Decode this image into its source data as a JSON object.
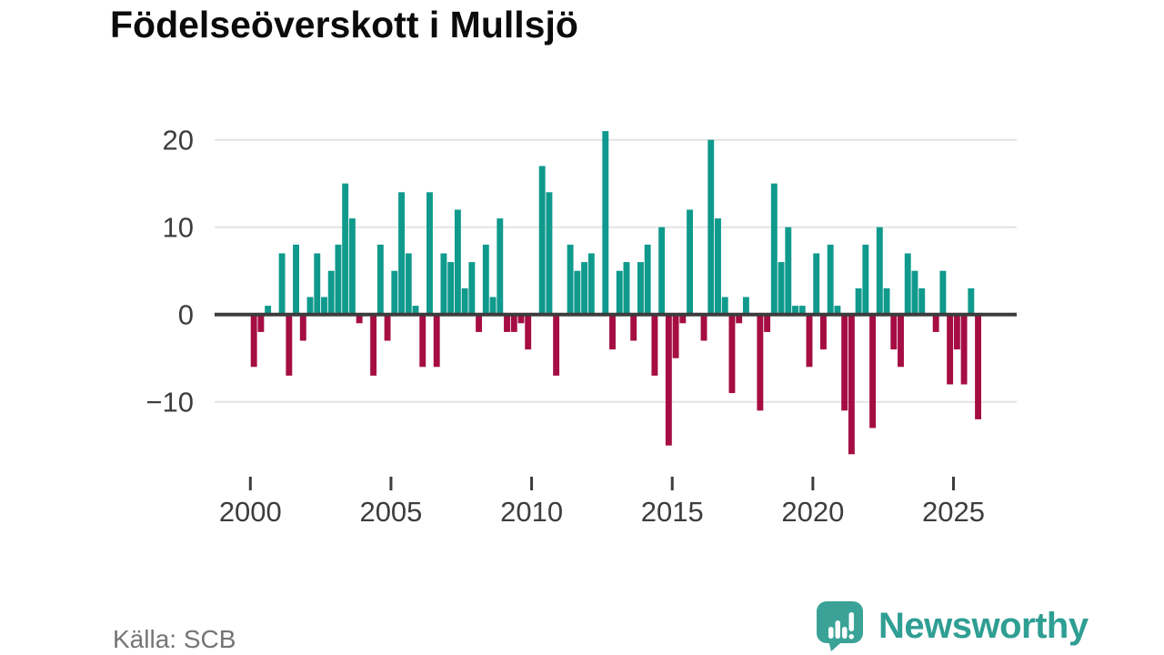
{
  "title": "Födelseöverskott i Mullsjö",
  "source": "Källa: SCB",
  "logo": {
    "brand": "Newsworthy"
  },
  "colors": {
    "positive_bar": "#0f9a8d",
    "negative_bar": "#a50d43",
    "zero_line": "#3c3c3c",
    "gridline": "#e4e4e4",
    "axis_text": "#3d3d3d",
    "title_text": "#0b0b0b",
    "source_text": "#757575",
    "logo_teal": "#2f9e93",
    "logo_bubble": "#3ba297"
  },
  "chart_data": {
    "type": "bar",
    "title": "Födelseöverskott i Mullsjö",
    "unit": "persons per quarter",
    "frequency": "quarterly",
    "x_start": "2000 Q1",
    "x_end": "2025 Q4",
    "grid": "horizontal",
    "legend": "none",
    "ylim": [
      -17,
      21.5
    ],
    "y_ticks": [
      {
        "value": -10,
        "label": "−10"
      },
      {
        "value": 0,
        "label": "0"
      },
      {
        "value": 10,
        "label": "10"
      },
      {
        "value": 20,
        "label": "20"
      }
    ],
    "x_ticks": [
      {
        "year": 2000,
        "label": "2000"
      },
      {
        "year": 2005,
        "label": "2005"
      },
      {
        "year": 2010,
        "label": "2010"
      },
      {
        "year": 2015,
        "label": "2015"
      },
      {
        "year": 2020,
        "label": "2020"
      },
      {
        "year": 2025,
        "label": "2025"
      }
    ],
    "values": [
      -6,
      -2,
      1,
      0,
      7,
      -7,
      8,
      -3,
      2,
      7,
      2,
      5,
      8,
      15,
      11,
      -1,
      0,
      -7,
      8,
      -3,
      5,
      14,
      7,
      1,
      -6,
      14,
      -6,
      7,
      6,
      12,
      3,
      6,
      -2,
      8,
      2,
      11,
      -2,
      -2,
      -1,
      -4,
      0,
      17,
      14,
      -7,
      0,
      8,
      5,
      6,
      7,
      0,
      21,
      -4,
      5,
      6,
      -3,
      6,
      8,
      -7,
      10,
      -15,
      -5,
      -1,
      12,
      0,
      -3,
      20,
      11,
      2,
      -9,
      -1,
      2,
      0,
      -11,
      -2,
      15,
      6,
      10,
      1,
      1,
      -6,
      7,
      -4,
      8,
      1,
      -11,
      -16,
      3,
      8,
      -13,
      10,
      3,
      -4,
      -6,
      7,
      5,
      3,
      0,
      -2,
      5,
      -8,
      -4,
      -8,
      3,
      -12
    ],
    "by_year": {
      "2000": [
        -6,
        -2,
        1,
        0
      ],
      "2001": [
        7,
        -7,
        8,
        -3
      ],
      "2002": [
        2,
        7,
        2,
        5
      ],
      "2003": [
        8,
        15,
        11,
        -1
      ],
      "2004": [
        0,
        -7,
        8,
        -3
      ],
      "2005": [
        5,
        14,
        7,
        1
      ],
      "2006": [
        -6,
        14,
        -6,
        7
      ],
      "2007": [
        6,
        12,
        3,
        6
      ],
      "2008": [
        -2,
        8,
        2,
        11
      ],
      "2009": [
        -2,
        -2,
        -1,
        -4
      ],
      "2010": [
        0,
        17,
        14,
        -7
      ],
      "2011": [
        0,
        8,
        5,
        6
      ],
      "2012": [
        7,
        0,
        21,
        -4
      ],
      "2013": [
        5,
        6,
        -3,
        6
      ],
      "2014": [
        8,
        -7,
        10,
        -15
      ],
      "2015": [
        -5,
        -1,
        12,
        0
      ],
      "2016": [
        -3,
        20,
        11,
        2
      ],
      "2017": [
        -9,
        -1,
        2,
        0
      ],
      "2018": [
        -11,
        -2,
        15,
        6
      ],
      "2019": [
        10,
        1,
        1,
        -6
      ],
      "2020": [
        7,
        -4,
        8,
        1
      ],
      "2021": [
        -11,
        -16,
        3,
        8
      ],
      "2022": [
        -13,
        10,
        3,
        -4
      ],
      "2023": [
        -6,
        7,
        5,
        3
      ],
      "2024": [
        0,
        -2,
        5,
        -8
      ],
      "2025": [
        -4,
        -8,
        3,
        -12
      ]
    }
  }
}
